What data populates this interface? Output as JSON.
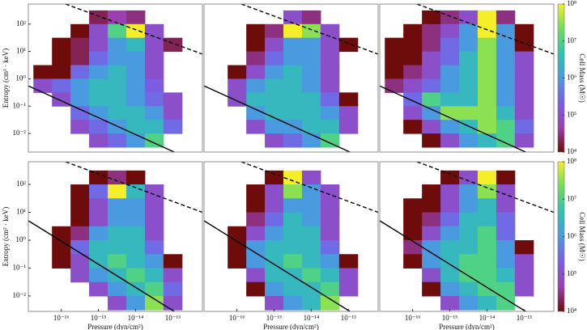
{
  "chart_data": [
    {
      "type": "heatmap",
      "log": true,
      "xlim": [
        1.3e-17,
        6.3e-13
      ],
      "ylim": [
        0.0021,
        540
      ],
      "xbins": [
        1.78e-17,
        5.62e-17,
        1.78e-16,
        5.62e-16,
        1.78e-15,
        5.62e-15,
        1.78e-14,
        5.62e-14,
        1.78e-13
      ],
      "ybins": [
        316,
        100,
        31.6,
        10,
        3.16,
        1,
        0.316,
        0.1,
        0.0316,
        0.01,
        0.00316
      ],
      "values": [
        [
          null,
          null,
          null,
          20000.0,
          50000.0,
          30000.0,
          null,
          null
        ],
        [
          null,
          null,
          10000.0,
          100000.0,
          10000000.0,
          100000000.0,
          100000.0,
          null
        ],
        [
          null,
          10000.0,
          20000.0,
          100000.0,
          1000000.0,
          3000000.0,
          100000.0,
          20000.0
        ],
        [
          null,
          10000.0,
          20000.0,
          300000.0,
          1000000.0,
          1000000.0,
          100000.0,
          null
        ],
        [
          10000.0,
          10000.0,
          300000.0,
          1000000.0,
          3000000.0,
          1000000.0,
          100000.0,
          null
        ],
        [
          100000.0,
          300000.0,
          1000000.0,
          3000000.0,
          3000000.0,
          1000000.0,
          200000.0,
          null
        ],
        [
          null,
          100000.0,
          1000000.0,
          3000000.0,
          3000000.0,
          1000000.0,
          300000.0,
          100000.0
        ],
        [
          null,
          null,
          300000.0,
          1000000.0,
          3000000.0,
          3000000.0,
          1000000.0,
          100000.0
        ],
        [
          null,
          null,
          100000.0,
          300000.0,
          1000000.0,
          3000000.0,
          3000000.0,
          300000.0
        ],
        [
          null,
          null,
          null,
          100000.0,
          300000.0,
          1000000.0,
          10000000.0,
          null
        ]
      ],
      "lines": [
        {
          "style": "solid",
          "x": [
            1.3e-17,
            1.1e-13
          ],
          "y": [
            0.55,
            0.0021
          ]
        },
        {
          "style": "dashed",
          "x": [
            1.3e-16,
            6.3e-13
          ],
          "y": [
            540,
            8
          ]
        }
      ],
      "yticks": [
        {
          "value": 0.01,
          "label": "10⁻²"
        },
        {
          "value": 0.1,
          "label": "10⁻¹"
        },
        {
          "value": 1,
          "label": "10⁰"
        },
        {
          "value": 10,
          "label": "10¹"
        },
        {
          "value": 100,
          "label": "10²"
        }
      ],
      "y_label": "Entropy (cm² · keV)"
    },
    {
      "type": "heatmap",
      "log": true,
      "xlim": [
        1.3e-17,
        6.3e-13
      ],
      "ylim": [
        0.0021,
        540
      ],
      "xbins": [
        1.78e-17,
        5.62e-17,
        1.78e-16,
        5.62e-16,
        1.78e-15,
        5.62e-15,
        1.78e-14,
        5.62e-14,
        1.78e-13
      ],
      "ybins": [
        316,
        100,
        31.6,
        10,
        3.16,
        1,
        0.316,
        0.1,
        0.0316,
        0.01,
        0.00316
      ],
      "values": [
        [
          null,
          null,
          null,
          null,
          100000.0,
          30000.0,
          null,
          null
        ],
        [
          null,
          null,
          10000.0,
          30000.0,
          100000000.0,
          30000000.0,
          100000.0,
          null
        ],
        [
          null,
          null,
          10000.0,
          100000.0,
          1000000.0,
          1000000.0,
          100000.0,
          10000.0
        ],
        [
          null,
          null,
          30000.0,
          300000.0,
          1000000.0,
          1000000.0,
          100000.0,
          null
        ],
        [
          null,
          10000.0,
          100000.0,
          1000000.0,
          3000000.0,
          1000000.0,
          100000.0,
          null
        ],
        [
          null,
          100000.0,
          1000000.0,
          3000000.0,
          3000000.0,
          1000000.0,
          100000.0,
          null
        ],
        [
          null,
          100000.0,
          3000000.0,
          3000000.0,
          3000000.0,
          3000000.0,
          300000.0,
          10000.0
        ],
        [
          null,
          null,
          1000000.0,
          3000000.0,
          3000000.0,
          3000000.0,
          1000000.0,
          100000.0
        ],
        [
          null,
          null,
          100000.0,
          1000000.0,
          1000000.0,
          3000000.0,
          3000000.0,
          100000.0
        ],
        [
          null,
          null,
          null,
          100000.0,
          300000.0,
          1000000.0,
          10000000.0,
          null
        ]
      ],
      "lines": [
        {
          "style": "solid",
          "x": [
            1.3e-17,
            1.1e-13
          ],
          "y": [
            0.55,
            0.0021
          ]
        },
        {
          "style": "dashed",
          "x": [
            1.3e-16,
            6.3e-13
          ],
          "y": [
            540,
            8
          ]
        }
      ]
    },
    {
      "type": "heatmap",
      "log": true,
      "xlim": [
        1.3e-17,
        6.3e-13
      ],
      "ylim": [
        0.0021,
        540
      ],
      "xbins": [
        1.78e-17,
        5.62e-17,
        1.78e-16,
        5.62e-16,
        1.78e-15,
        5.62e-15,
        1.78e-14,
        5.62e-14,
        1.78e-13
      ],
      "ybins": [
        316,
        100,
        31.6,
        10,
        3.16,
        1,
        0.316,
        0.1,
        0.0316,
        0.01,
        0.00316
      ],
      "values": [
        [
          null,
          null,
          10000.0,
          30000.0,
          100000.0,
          100000000.0,
          30000.0,
          null
        ],
        [
          null,
          10000.0,
          30000.0,
          100000.0,
          1000000.0,
          100000000.0,
          1000000.0,
          10000.0
        ],
        [
          10000.0,
          10000.0,
          30000.0,
          300000.0,
          1000000.0,
          30000000.0,
          1000000.0,
          10000.0
        ],
        [
          10000.0,
          10000.0,
          100000.0,
          300000.0,
          3000000.0,
          30000000.0,
          1000000.0,
          100000.0
        ],
        [
          10000.0,
          30000.0,
          100000.0,
          1000000.0,
          3000000.0,
          30000000.0,
          1000000.0,
          100000.0
        ],
        [
          30000.0,
          100000.0,
          300000.0,
          1000000.0,
          3000000.0,
          30000000.0,
          1000000.0,
          100000.0
        ],
        [
          null,
          300000.0,
          10000000.0,
          3000000.0,
          3000000.0,
          30000000.0,
          1000000.0,
          100000.0
        ],
        [
          null,
          100000.0,
          1000000.0,
          30000000.0,
          30000000.0,
          30000000.0,
          3000000.0,
          100000.0
        ],
        [
          null,
          10000.0,
          100000.0,
          1000000.0,
          3000000.0,
          30000000.0,
          10000000.0,
          300000.0
        ],
        [
          null,
          null,
          10000.0,
          100000.0,
          1000000.0,
          3000000.0,
          10000000.0,
          100000.0
        ]
      ],
      "lines": [
        {
          "style": "solid",
          "x": [
            1.3e-17,
            1.1e-13
          ],
          "y": [
            0.55,
            0.0021
          ]
        },
        {
          "style": "dashed",
          "x": [
            1.3e-16,
            6.3e-13
          ],
          "y": [
            540,
            8
          ]
        }
      ],
      "colorbar": {
        "label": "Cell Mass (M☉)",
        "lim": [
          10000.0,
          100000000.0
        ],
        "ticks": [
          {
            "value": 10000.0,
            "label": "10⁴"
          },
          {
            "value": 100000.0,
            "label": "10⁵"
          },
          {
            "value": 1000000.0,
            "label": "10⁶"
          },
          {
            "value": 10000000.0,
            "label": "10⁷"
          },
          {
            "value": 100000000.0,
            "label": "10⁸"
          }
        ],
        "colors": [
          "#6e0b0b",
          "#9b3fae",
          "#7a5ee6",
          "#4a9ae0",
          "#2fc3b0",
          "#6ede5c",
          "#f5ee2a"
        ]
      }
    },
    {
      "type": "heatmap",
      "log": true,
      "xlim": [
        1.3e-17,
        6.3e-13
      ],
      "ylim": [
        0.0028,
        650
      ],
      "xbins": [
        1.78e-17,
        5.62e-17,
        1.78e-16,
        5.62e-16,
        1.78e-15,
        5.62e-15,
        1.78e-14,
        5.62e-14,
        1.78e-13
      ],
      "ybins": [
        316,
        100,
        31.6,
        10,
        3.16,
        1,
        0.316,
        0.1,
        0.0316,
        0.01,
        0.00316
      ],
      "values": [
        [
          null,
          null,
          null,
          10000.0,
          30000.0,
          10000.0,
          null,
          null
        ],
        [
          null,
          null,
          10000.0,
          300000.0,
          100000000.0,
          3000000.0,
          100000.0,
          null
        ],
        [
          null,
          null,
          10000.0,
          100000.0,
          1000000.0,
          1000000.0,
          100000.0,
          null
        ],
        [
          null,
          null,
          10000.0,
          100000.0,
          1000000.0,
          1000000.0,
          100000.0,
          null
        ],
        [
          null,
          10000.0,
          30000.0,
          1000000.0,
          3000000.0,
          3000000.0,
          100000.0,
          null
        ],
        [
          null,
          10000.0,
          300000.0,
          3000000.0,
          3000000.0,
          3000000.0,
          300000.0,
          null
        ],
        [
          null,
          10000.0,
          100000.0,
          3000000.0,
          10000000.0,
          3000000.0,
          1000000.0,
          10000.0
        ],
        [
          null,
          null,
          100000.0,
          1000000.0,
          3000000.0,
          10000000.0,
          3000000.0,
          100000.0
        ],
        [
          null,
          null,
          null,
          100000.0,
          1000000.0,
          3000000.0,
          10000000.0,
          300000.0
        ],
        [
          null,
          null,
          null,
          null,
          100000.0,
          1000000.0,
          30000000.0,
          100000.0
        ]
      ],
      "lines": [
        {
          "style": "solid",
          "x": [
            1.3e-17,
            1.1e-13
          ],
          "y": [
            5,
            0.0028
          ]
        },
        {
          "style": "dashed",
          "x": [
            1.3e-16,
            6.3e-13
          ],
          "y": [
            650,
            10
          ]
        }
      ],
      "yticks": [
        {
          "value": 0.01,
          "label": "10⁻²"
        },
        {
          "value": 0.1,
          "label": "10⁻¹"
        },
        {
          "value": 1,
          "label": "10⁰"
        },
        {
          "value": 10,
          "label": "10¹"
        },
        {
          "value": 100,
          "label": "10²"
        }
      ],
      "xticks": [
        {
          "value": 1e-16,
          "label": "10⁻¹⁶"
        },
        {
          "value": 1e-15,
          "label": "10⁻¹⁵"
        },
        {
          "value": 1e-14,
          "label": "10⁻¹⁴"
        },
        {
          "value": 1e-13,
          "label": "10⁻¹³"
        }
      ],
      "y_label": "Entropy (cm² · keV)",
      "x_label": "Pressure (dyn/cm²)"
    },
    {
      "type": "heatmap",
      "log": true,
      "xlim": [
        1.3e-17,
        6.3e-13
      ],
      "ylim": [
        0.0028,
        650
      ],
      "xbins": [
        1.78e-17,
        5.62e-17,
        1.78e-16,
        5.62e-16,
        1.78e-15,
        5.62e-15,
        1.78e-14,
        5.62e-14,
        1.78e-13
      ],
      "ybins": [
        316,
        100,
        31.6,
        10,
        3.16,
        1,
        0.316,
        0.1,
        0.0316,
        0.01,
        0.00316
      ],
      "values": [
        [
          null,
          null,
          null,
          10000.0,
          100000000.0,
          100000.0,
          null,
          null
        ],
        [
          null,
          null,
          10000.0,
          100000.0,
          30000000.0,
          1000000.0,
          100000.0,
          null
        ],
        [
          null,
          null,
          10000.0,
          100000.0,
          1000000.0,
          1000000.0,
          100000.0,
          null
        ],
        [
          null,
          null,
          30000.0,
          300000.0,
          3000000.0,
          1000000.0,
          100000.0,
          null
        ],
        [
          null,
          10000.0,
          100000.0,
          1000000.0,
          3000000.0,
          3000000.0,
          100000.0,
          null
        ],
        [
          null,
          10000.0,
          1000000.0,
          3000000.0,
          3000000.0,
          3000000.0,
          300000.0,
          null
        ],
        [
          null,
          10000.0,
          1000000.0,
          3000000.0,
          10000000.0,
          3000000.0,
          1000000.0,
          10000.0
        ],
        [
          null,
          null,
          100000.0,
          3000000.0,
          3000000.0,
          10000000.0,
          3000000.0,
          100000.0
        ],
        [
          null,
          null,
          10000.0,
          1000000.0,
          3000000.0,
          3000000.0,
          10000000.0,
          100000.0
        ],
        [
          null,
          null,
          null,
          100000.0,
          1000000.0,
          3000000.0,
          30000000.0,
          null
        ]
      ],
      "lines": [
        {
          "style": "solid",
          "x": [
            1.3e-17,
            1.1e-13
          ],
          "y": [
            5,
            0.0028
          ]
        },
        {
          "style": "dashed",
          "x": [
            1.3e-16,
            6.3e-13
          ],
          "y": [
            650,
            10
          ]
        }
      ],
      "xticks": [
        {
          "value": 1e-16,
          "label": "10⁻¹⁶"
        },
        {
          "value": 1e-15,
          "label": "10⁻¹⁵"
        },
        {
          "value": 1e-14,
          "label": "10⁻¹⁴"
        },
        {
          "value": 1e-13,
          "label": "10⁻¹³"
        }
      ],
      "x_label": "Pressure (dyn/cm²)"
    },
    {
      "type": "heatmap",
      "log": true,
      "xlim": [
        1.3e-17,
        6.3e-13
      ],
      "ylim": [
        0.0028,
        650
      ],
      "xbins": [
        1.78e-17,
        5.62e-17,
        1.78e-16,
        5.62e-16,
        1.78e-15,
        5.62e-15,
        1.78e-14,
        5.62e-14,
        1.78e-13
      ],
      "ybins": [
        316,
        100,
        31.6,
        10,
        3.16,
        1,
        0.316,
        0.1,
        0.0316,
        0.01,
        0.00316
      ],
      "values": [
        [
          null,
          null,
          null,
          10000.0,
          100000.0,
          100000000.0,
          10000.0,
          null
        ],
        [
          null,
          null,
          10000.0,
          100000.0,
          1000000.0,
          30000000.0,
          100000.0,
          null
        ],
        [
          null,
          10000.0,
          10000.0,
          100000.0,
          1000000.0,
          3000000.0,
          100000.0,
          null
        ],
        [
          null,
          10000.0,
          30000.0,
          300000.0,
          3000000.0,
          3000000.0,
          300000.0,
          null
        ],
        [
          null,
          10000.0,
          100000.0,
          1000000.0,
          3000000.0,
          10000000.0,
          300000.0,
          null
        ],
        [
          null,
          30000.0,
          1000000.0,
          3000000.0,
          3000000.0,
          10000000.0,
          1000000.0,
          10000.0
        ],
        [
          null,
          10000.0,
          1000000.0,
          3000000.0,
          10000000.0,
          10000000.0,
          1000000.0,
          100000.0
        ],
        [
          null,
          null,
          100000.0,
          3000000.0,
          10000000.0,
          10000000.0,
          3000000.0,
          100000.0
        ],
        [
          null,
          null,
          10000.0,
          1000000.0,
          3000000.0,
          10000000.0,
          10000000.0,
          100000.0
        ],
        [
          null,
          null,
          null,
          100000.0,
          1000000.0,
          3000000.0,
          10000000.0,
          null
        ]
      ],
      "lines": [
        {
          "style": "solid",
          "x": [
            1.3e-17,
            1.1e-13
          ],
          "y": [
            5,
            0.0028
          ]
        },
        {
          "style": "dashed",
          "x": [
            1.3e-16,
            6.3e-13
          ],
          "y": [
            650,
            10
          ]
        }
      ],
      "xticks": [
        {
          "value": 1e-16,
          "label": "10⁻¹⁶"
        },
        {
          "value": 1e-15,
          "label": "10⁻¹⁵"
        },
        {
          "value": 1e-14,
          "label": "10⁻¹⁴"
        },
        {
          "value": 1e-13,
          "label": "10⁻¹³"
        }
      ],
      "x_label": "Pressure (dyn/cm²)",
      "colorbar": {
        "label": "Cell Mass (M☉)",
        "lim": [
          10000.0,
          100000000.0
        ],
        "ticks": [
          {
            "value": 10000.0,
            "label": "10⁴"
          },
          {
            "value": 100000.0,
            "label": "10⁵"
          },
          {
            "value": 1000000.0,
            "label": "10⁶"
          },
          {
            "value": 10000000.0,
            "label": "10⁷"
          },
          {
            "value": 100000000.0,
            "label": "10⁸"
          }
        ],
        "colors": [
          "#6e0b0b",
          "#9b3fae",
          "#7a5ee6",
          "#4a9ae0",
          "#2fc3b0",
          "#6ede5c",
          "#f5ee2a"
        ]
      }
    }
  ]
}
